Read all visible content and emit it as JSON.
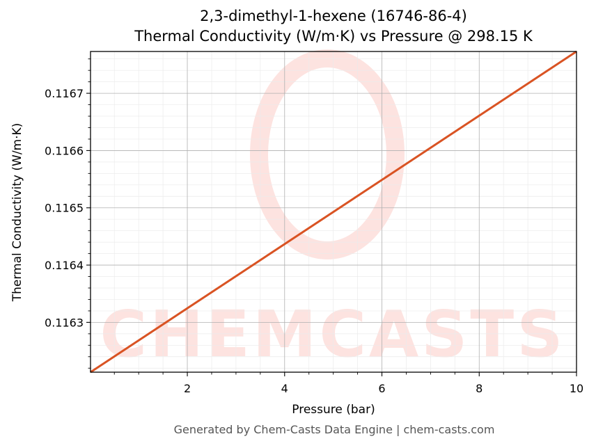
{
  "chart_data": {
    "type": "line",
    "title": "2,3-dimethyl-1-hexene (16746-86-4)",
    "subtitle": "Thermal Conductivity (W/m·K) vs Pressure @ 298.15 K",
    "xlabel": "Pressure (bar)",
    "ylabel": "Thermal Conductivity (W/m·K)",
    "xlim": [
      0.01,
      10
    ],
    "ylim": [
      0.116213,
      0.116773
    ],
    "x_ticks": [
      2,
      4,
      6,
      8,
      10
    ],
    "x_tick_labels": [
      "2",
      "4",
      "6",
      "8",
      "10"
    ],
    "y_ticks": [
      0.1163,
      0.1164,
      0.1165,
      0.1166,
      0.1167
    ],
    "y_tick_labels": [
      "0.1163",
      "0.1164",
      "0.1165",
      "0.1166",
      "0.1167"
    ],
    "grid": true,
    "series": [
      {
        "color": "#d95323",
        "x": [
          0.01,
          10
        ],
        "y": [
          0.116213,
          0.116773
        ]
      }
    ]
  },
  "watermark": {
    "text": "CHEMCASTS",
    "color": "#fde3e0"
  },
  "footer": "Generated by Chem-Casts Data Engine | chem-casts.com"
}
